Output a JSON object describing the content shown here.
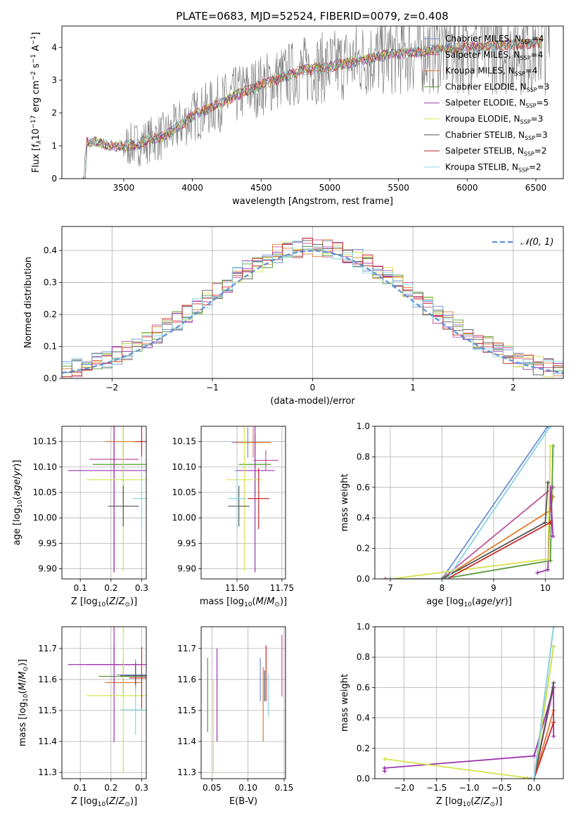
{
  "figure": {
    "title": "PLATE=0683, MJD=52524, FIBERID=0079, z=0.408"
  },
  "series_colors": [
    "#6e8fd6",
    "#c0559a",
    "#e07a2f",
    "#5a9a3a",
    "#9933aa",
    "#d6e24c",
    "#555555",
    "#cc2a2a",
    "#88d4e0"
  ],
  "chart_data": [
    {
      "id": "spectrum",
      "type": "line",
      "title": "PLATE=0683, MJD=52524, FIBERID=0079, z=0.408",
      "xlabel": "wavelength [Angstrom, rest frame]",
      "ylabel": "Flux [f_λ 10^-17 erg cm^-2 s^-1 A^-1]",
      "xlim": [
        3050,
        6700
      ],
      "ylim": [
        0,
        4.65
      ],
      "xticks": [
        "3500",
        "4000",
        "4500",
        "5000",
        "5500",
        "6000",
        "6500"
      ],
      "yticks": [
        "0",
        "1",
        "2",
        "3",
        "4"
      ],
      "grid": false,
      "legend_position": "upper-right",
      "series": [
        {
          "name": "Chabrier MILES, N_SSP=4"
        },
        {
          "name": "Salpeter MILES, N_SSP=4"
        },
        {
          "name": "Kroupa MILES, N_SSP=4"
        },
        {
          "name": "Chabrier ELODIE, N_SSP=3"
        },
        {
          "name": "Salpeter ELODIE, N_SSP=5"
        },
        {
          "name": "Kroupa ELODIE, N_SSP=3"
        },
        {
          "name": "Chabrier STELIB, N_SSP=3"
        },
        {
          "name": "Salpeter STELIB, N_SSP=2"
        },
        {
          "name": "Kroupa STELIB, N_SSP=2"
        }
      ],
      "data_trend": {
        "x": [
          3200,
          3230,
          3300,
          3400,
          3500,
          3600,
          3700,
          3800,
          3900,
          4000,
          4200,
          4400,
          4600,
          4800,
          5000,
          5200,
          5400,
          5600,
          5800,
          6000,
          6200,
          6400,
          6550
        ],
        "y": [
          0,
          1.1,
          1.15,
          1.0,
          1.0,
          1.05,
          1.2,
          1.3,
          1.6,
          1.9,
          2.3,
          2.7,
          3.0,
          3.3,
          3.4,
          3.6,
          3.75,
          3.85,
          3.95,
          4.0,
          4.05,
          4.1,
          4.15
        ]
      },
      "data_noise": {
        "x_start": 3500,
        "x_end": 6600
      }
    },
    {
      "id": "residuals",
      "type": "line",
      "xlabel": "(data-model)/error",
      "ylabel": "Normed distribution",
      "xlim": [
        -2.5,
        2.5
      ],
      "ylim": [
        0,
        0.475
      ],
      "xticks": [
        "−2",
        "−1",
        "0",
        "1",
        "2"
      ],
      "yticks": [
        "0.0",
        "0.1",
        "0.2",
        "0.3",
        "0.4"
      ],
      "grid": true,
      "legend_position": "upper-right",
      "legend": [
        "𝒩(0, 1)"
      ],
      "reference_curve": {
        "name": "N(0,1)",
        "mean": 0,
        "sigma": 1
      }
    },
    {
      "id": "age_vs_z",
      "type": "scatter",
      "xlabel": "Z [log10(Z/Z⊙)]",
      "ylabel": "age [log10(age/yr)]",
      "xlim": [
        0.04,
        0.315
      ],
      "ylim": [
        9.88,
        10.18
      ],
      "xticks": [
        "0.1",
        "0.2",
        "0.3"
      ],
      "yticks": [
        "9.90",
        "9.95",
        "10.00",
        "10.05",
        "10.10",
        "10.15"
      ],
      "grid": true,
      "points": [
        {
          "x": 0.3,
          "y": 10.15,
          "xerr": 0.03,
          "yerr": 0.02
        },
        {
          "x": 0.21,
          "y": 10.115,
          "xerr": 0.08,
          "yerr": 0.22
        },
        {
          "x": 0.24,
          "y": 10.15,
          "xerr": 0.06,
          "yerr": 0.03
        },
        {
          "x": 0.24,
          "y": 10.105,
          "xerr": 0.1,
          "yerr": 0.06
        },
        {
          "x": 0.21,
          "y": 10.093,
          "xerr": 0.15,
          "yerr": 0.2
        },
        {
          "x": 0.24,
          "y": 10.075,
          "xerr": 0.12,
          "yerr": 0.18
        },
        {
          "x": 0.24,
          "y": 10.023,
          "xerr": 0.05,
          "yerr": 0.04
        },
        {
          "x": 0.3,
          "y": 10.15,
          "xerr": 0.02,
          "yerr": 0.03
        },
        {
          "x": 0.3,
          "y": 10.038,
          "xerr": 0.03,
          "yerr": 0.06
        }
      ]
    },
    {
      "id": "age_vs_mass",
      "type": "scatter",
      "xlabel": "mass [log10(M/M⊙)]",
      "ylabel": "",
      "xlim": [
        11.3,
        11.77
      ],
      "ylim": [
        9.88,
        10.18
      ],
      "xticks": [
        "11.50",
        "11.75"
      ],
      "yticks": [
        "9.90",
        "9.95",
        "10.00",
        "10.05",
        "10.10",
        "10.15"
      ],
      "grid": true,
      "points": [
        {
          "x": 11.56,
          "y": 10.148,
          "xerr": 0.09,
          "yerr": 0.03
        },
        {
          "x": 11.66,
          "y": 10.113,
          "xerr": 0.07,
          "yerr": 0.02
        },
        {
          "x": 11.59,
          "y": 10.148,
          "xerr": 0.1,
          "yerr": 0.03
        },
        {
          "x": 11.6,
          "y": 10.105,
          "xerr": 0.09,
          "yerr": 0.06
        },
        {
          "x": 11.6,
          "y": 10.093,
          "xerr": 0.11,
          "yerr": 0.2
        },
        {
          "x": 11.54,
          "y": 10.075,
          "xerr": 0.1,
          "yerr": 0.18
        },
        {
          "x": 11.51,
          "y": 10.023,
          "xerr": 0.06,
          "yerr": 0.04
        },
        {
          "x": 11.62,
          "y": 10.038,
          "xerr": 0.06,
          "yerr": 0.06
        },
        {
          "x": 11.5,
          "y": 10.038,
          "xerr": 0.05,
          "yerr": 0.06
        }
      ]
    },
    {
      "id": "massweight_vs_age",
      "type": "line",
      "xlabel": "age [log10(age/yr)]",
      "ylabel": "mass weight",
      "xlim": [
        6.7,
        10.35
      ],
      "ylim": [
        0,
        1
      ],
      "xticks": [
        "7",
        "8",
        "9",
        "10"
      ],
      "yticks": [
        "0.0",
        "0.2",
        "0.4",
        "0.6",
        "0.8",
        "1.0"
      ],
      "grid": true,
      "series": [
        {
          "x": [
            7.0,
            8.0,
            10.05
          ],
          "y": [
            0.0,
            0.0,
            1.0
          ]
        },
        {
          "x": [
            6.9,
            8.0,
            10.15
          ],
          "y": [
            0.0,
            0.0,
            0.6
          ]
        },
        {
          "x": [
            7.0,
            8.0,
            10.1,
            10.15
          ],
          "y": [
            0.0,
            0.0,
            0.45,
            0.54
          ]
        },
        {
          "x": [
            7.0,
            8.0,
            10.1,
            10.15
          ],
          "y": [
            0.0,
            0.0,
            0.12,
            0.87
          ]
        },
        {
          "x": [
            9.85,
            10.05,
            10.1,
            10.15
          ],
          "y": [
            0.04,
            0.06,
            0.6,
            0.28
          ]
        },
        {
          "x": [
            7.0,
            10.05,
            10.1
          ],
          "y": [
            0.0,
            0.13,
            0.87
          ]
        },
        {
          "x": [
            7.0,
            8.0,
            10.0,
            10.05
          ],
          "y": [
            0.0,
            0.0,
            0.37,
            0.63
          ]
        },
        {
          "x": [
            7.0,
            8.1,
            10.1
          ],
          "y": [
            0.0,
            0.0,
            0.37
          ]
        },
        {
          "x": [
            7.0,
            8.1,
            10.1
          ],
          "y": [
            0.0,
            0.0,
            1.0
          ]
        }
      ]
    },
    {
      "id": "mass_vs_z",
      "type": "scatter",
      "xlabel": "Z [log10(Z/Z⊙)]",
      "ylabel": "mass [log10(M/M⊙)]",
      "xlim": [
        0.04,
        0.315
      ],
      "ylim": [
        11.28,
        11.77
      ],
      "xticks": [
        "0.1",
        "0.2",
        "0.3"
      ],
      "yticks": [
        "11.3",
        "11.4",
        "11.5",
        "11.6",
        "11.7"
      ],
      "grid": true,
      "points": [
        {
          "x": 0.28,
          "y": 11.615,
          "xerr": 0.06,
          "yerr": 0.05
        },
        {
          "x": 0.21,
          "y": 11.648,
          "xerr": 0.09,
          "yerr": 0.06
        },
        {
          "x": 0.24,
          "y": 11.59,
          "xerr": 0.06,
          "yerr": 0.04
        },
        {
          "x": 0.24,
          "y": 11.61,
          "xerr": 0.08,
          "yerr": 0.06
        },
        {
          "x": 0.21,
          "y": 11.648,
          "xerr": 0.15,
          "yerr": 0.25
        },
        {
          "x": 0.24,
          "y": 11.548,
          "xerr": 0.12,
          "yerr": 0.25
        },
        {
          "x": 0.28,
          "y": 11.612,
          "xerr": 0.05,
          "yerr": 0.04
        },
        {
          "x": 0.3,
          "y": 11.605,
          "xerr": 0.04,
          "yerr": 0.1
        },
        {
          "x": 0.28,
          "y": 11.502,
          "xerr": 0.05,
          "yerr": 0.08
        }
      ]
    },
    {
      "id": "mass_vs_ebv",
      "type": "scatter",
      "xlabel": "E(B-V)",
      "ylabel": "",
      "xlim": [
        0.035,
        0.152
      ],
      "ylim": [
        11.28,
        11.77
      ],
      "xticks": [
        "0.05",
        "0.10",
        "0.15"
      ],
      "yticks": [
        "11.3",
        "11.4",
        "11.5",
        "11.6",
        "11.7"
      ],
      "grid": true,
      "points": [
        {
          "x": 0.117,
          "y": 11.6,
          "yerr": 0.07
        },
        {
          "x": 0.147,
          "y": 11.645,
          "yerr": 0.1
        },
        {
          "x": 0.121,
          "y": 11.52,
          "yerr": 0.12
        },
        {
          "x": 0.044,
          "y": 11.55,
          "yerr": 0.12
        },
        {
          "x": 0.057,
          "y": 11.55,
          "yerr": 0.15
        },
        {
          "x": 0.052,
          "y": 11.45,
          "yerr": 0.15
        },
        {
          "x": 0.123,
          "y": 11.58,
          "yerr": 0.05
        },
        {
          "x": 0.125,
          "y": 11.62,
          "yerr": 0.09
        },
        {
          "x": 0.128,
          "y": 11.55,
          "yerr": 0.07
        }
      ]
    },
    {
      "id": "massweight_vs_z",
      "type": "line",
      "xlabel": "Z [log10(Z/Z⊙)]",
      "ylabel": "mass weight",
      "xlim": [
        -2.45,
        0.45
      ],
      "ylim": [
        0,
        1
      ],
      "xticks": [
        "−2.0",
        "−1.5",
        "−1.0",
        "−0.5",
        "0.0"
      ],
      "yticks": [
        "0.0",
        "0.2",
        "0.4",
        "0.6",
        "0.8",
        "1.0"
      ],
      "grid": true,
      "series": [
        {
          "x": [
            -0.05,
            0.0,
            0.3
          ],
          "y": [
            0.0,
            0.0,
            1.0
          ]
        },
        {
          "x": [
            -0.05,
            0.0,
            0.3
          ],
          "y": [
            0.0,
            0.0,
            0.6
          ]
        },
        {
          "x": [
            -0.15,
            0.0,
            0.3
          ],
          "y": [
            0.0,
            0.0,
            0.45
          ]
        },
        {
          "x": [
            -0.1,
            0.0,
            0.3
          ],
          "y": [
            0.0,
            0.0,
            0.87
          ]
        },
        {
          "x": [
            -2.3,
            -2.3,
            0.0,
            0.3,
            0.3
          ],
          "y": [
            0.05,
            0.07,
            0.15,
            0.6,
            0.28
          ]
        },
        {
          "x": [
            -2.3,
            0.0,
            0.3
          ],
          "y": [
            0.13,
            0.0,
            0.87
          ]
        },
        {
          "x": [
            -0.05,
            0.0,
            0.3
          ],
          "y": [
            0.0,
            0.0,
            0.63
          ]
        },
        {
          "x": [
            -0.05,
            0.0,
            0.3
          ],
          "y": [
            0.0,
            0.0,
            0.37
          ]
        },
        {
          "x": [
            -0.05,
            0.0,
            0.3
          ],
          "y": [
            0.0,
            0.0,
            1.0
          ]
        }
      ]
    }
  ]
}
